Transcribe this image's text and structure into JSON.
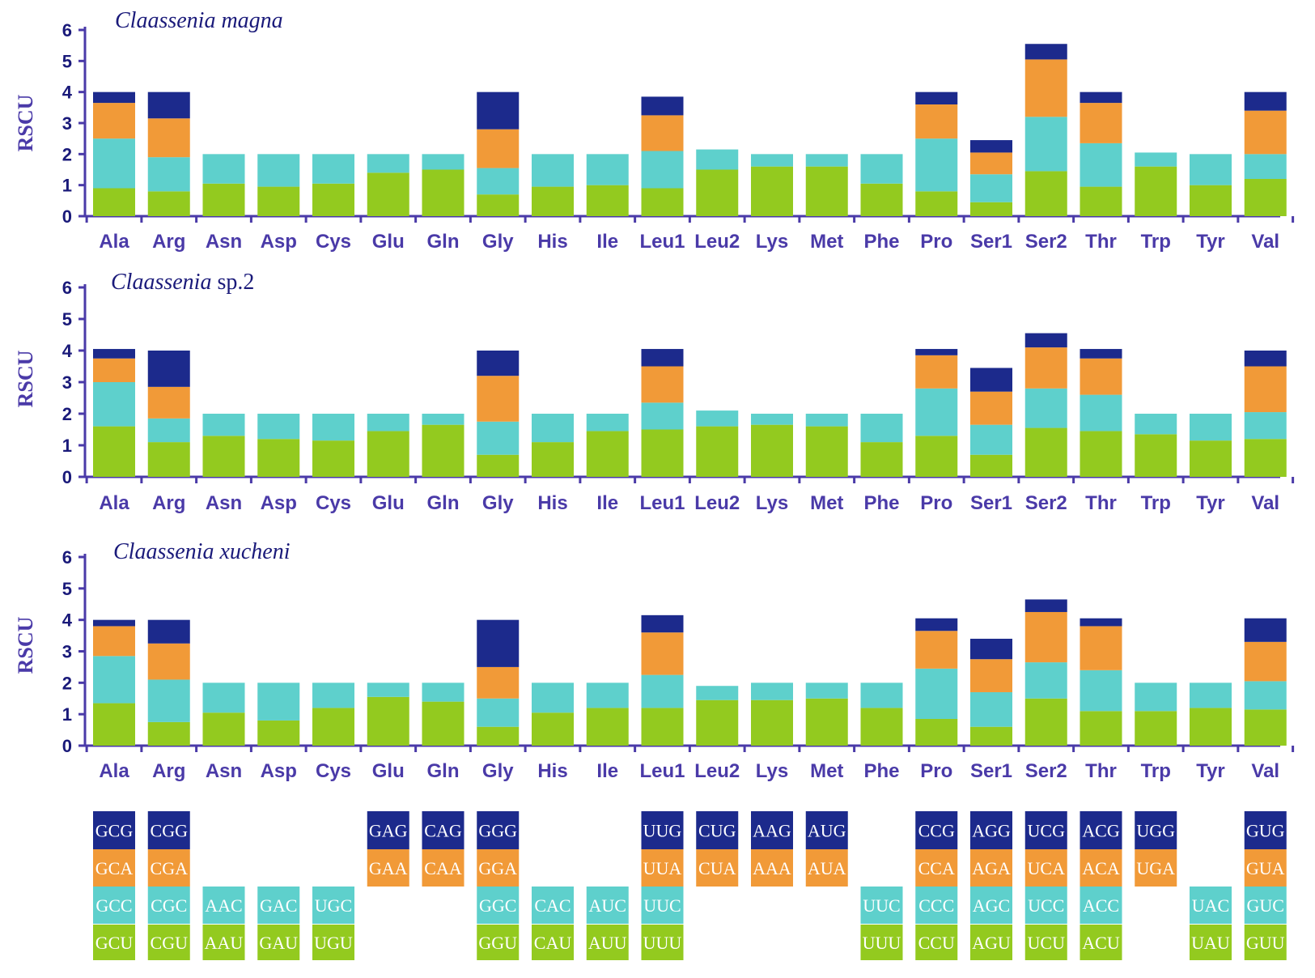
{
  "colors": {
    "level1": "#93ca1f",
    "level2": "#5ed0cc",
    "level3": "#f19a38",
    "level4": "#1c2a8c",
    "axis": "#4a3aa8"
  },
  "chart_data": [
    {
      "type": "bar",
      "stacked": true,
      "title": "Claassenia magna",
      "title_italic": "Claassenia magna",
      "title_plain": "",
      "ylabel": "RSCU",
      "ylim": [
        0,
        6
      ],
      "yticks": [
        "0",
        "1",
        "2",
        "3",
        "4",
        "5",
        "6"
      ],
      "categories": [
        "Ala",
        "Arg",
        "Asn",
        "Asp",
        "Cys",
        "Glu",
        "Gln",
        "Gly",
        "His",
        "Ile",
        "Leu1",
        "Leu2",
        "Lys",
        "Met",
        "Phe",
        "Pro",
        "Ser1",
        "Ser2",
        "Thr",
        "Trp",
        "Tyr",
        "Val"
      ],
      "stacks": [
        [
          0.9,
          1.6,
          1.15,
          0.35
        ],
        [
          0.8,
          1.1,
          1.25,
          0.85
        ],
        [
          1.05,
          0.95
        ],
        [
          0.95,
          1.05
        ],
        [
          1.05,
          0.95
        ],
        [
          1.4,
          0.6
        ],
        [
          1.5,
          0.5
        ],
        [
          0.7,
          0.85,
          1.25,
          1.2
        ],
        [
          0.95,
          1.05
        ],
        [
          1.0,
          1.0
        ],
        [
          0.9,
          1.2,
          1.15,
          0.6
        ],
        [
          1.5,
          0.65
        ],
        [
          1.6,
          0.4
        ],
        [
          1.6,
          0.4
        ],
        [
          1.05,
          0.95
        ],
        [
          0.8,
          1.7,
          1.1,
          0.4
        ],
        [
          0.45,
          0.9,
          0.7,
          0.4
        ],
        [
          1.45,
          1.75,
          1.85,
          0.5
        ],
        [
          0.95,
          1.4,
          1.3,
          0.35
        ],
        [
          1.6,
          0.45
        ],
        [
          1.0,
          1.0
        ],
        [
          1.2,
          0.8,
          1.4,
          0.6
        ]
      ]
    },
    {
      "type": "bar",
      "stacked": true,
      "title": "Claassenia sp.2",
      "title_italic": "Claassenia",
      "title_plain": " sp.2",
      "ylabel": "RSCU",
      "ylim": [
        0,
        6
      ],
      "yticks": [
        "0",
        "1",
        "2",
        "3",
        "4",
        "5",
        "6"
      ],
      "categories": [
        "Ala",
        "Arg",
        "Asn",
        "Asp",
        "Cys",
        "Glu",
        "Gln",
        "Gly",
        "His",
        "Ile",
        "Leu1",
        "Leu2",
        "Lys",
        "Met",
        "Phe",
        "Pro",
        "Ser1",
        "Ser2",
        "Thr",
        "Trp",
        "Tyr",
        "Val"
      ],
      "stacks": [
        [
          1.6,
          1.4,
          0.75,
          0.3
        ],
        [
          1.1,
          0.75,
          1.0,
          1.15
        ],
        [
          1.3,
          0.7
        ],
        [
          1.2,
          0.8
        ],
        [
          1.15,
          0.85
        ],
        [
          1.45,
          0.55
        ],
        [
          1.65,
          0.35
        ],
        [
          0.7,
          1.05,
          1.45,
          0.8
        ],
        [
          1.1,
          0.9
        ],
        [
          1.45,
          0.55
        ],
        [
          1.5,
          0.85,
          1.15,
          0.55
        ],
        [
          1.6,
          0.5
        ],
        [
          1.65,
          0.35
        ],
        [
          1.6,
          0.4
        ],
        [
          1.1,
          0.9
        ],
        [
          1.3,
          1.5,
          1.05,
          0.2
        ],
        [
          0.7,
          0.95,
          1.05,
          0.75
        ],
        [
          1.55,
          1.25,
          1.3,
          0.45
        ],
        [
          1.45,
          1.15,
          1.15,
          0.3
        ],
        [
          1.35,
          0.65
        ],
        [
          1.15,
          0.85
        ],
        [
          1.2,
          0.85,
          1.45,
          0.5
        ]
      ]
    },
    {
      "type": "bar",
      "stacked": true,
      "title": "Claassenia xucheni",
      "title_italic": "Claassenia xucheni",
      "title_plain": "",
      "ylabel": "RSCU",
      "ylim": [
        0,
        6
      ],
      "yticks": [
        "0",
        "1",
        "2",
        "3",
        "4",
        "5",
        "6"
      ],
      "categories": [
        "Ala",
        "Arg",
        "Asn",
        "Asp",
        "Cys",
        "Glu",
        "Gln",
        "Gly",
        "His",
        "Ile",
        "Leu1",
        "Leu2",
        "Lys",
        "Met",
        "Phe",
        "Pro",
        "Ser1",
        "Ser2",
        "Thr",
        "Trp",
        "Tyr",
        "Val"
      ],
      "stacks": [
        [
          1.35,
          1.5,
          0.95,
          0.2
        ],
        [
          0.75,
          1.35,
          1.15,
          0.75
        ],
        [
          1.05,
          0.95
        ],
        [
          0.8,
          1.2
        ],
        [
          1.2,
          0.8
        ],
        [
          1.55,
          0.45
        ],
        [
          1.4,
          0.6
        ],
        [
          0.6,
          0.9,
          1.0,
          1.5
        ],
        [
          1.05,
          0.95
        ],
        [
          1.2,
          0.8
        ],
        [
          1.2,
          1.05,
          1.35,
          0.55
        ],
        [
          1.45,
          0.45
        ],
        [
          1.45,
          0.55
        ],
        [
          1.5,
          0.5
        ],
        [
          1.2,
          0.8
        ],
        [
          0.85,
          1.6,
          1.2,
          0.4
        ],
        [
          0.6,
          1.1,
          1.05,
          0.65
        ],
        [
          1.5,
          1.15,
          1.6,
          0.4
        ],
        [
          1.1,
          1.3,
          1.4,
          0.25
        ],
        [
          1.1,
          0.9
        ],
        [
          1.2,
          0.8
        ],
        [
          1.15,
          0.9,
          1.25,
          0.75
        ]
      ]
    }
  ],
  "codon_table": [
    [
      "GCU",
      "GCC",
      "GCA",
      "GCG"
    ],
    [
      "CGU",
      "CGC",
      "CGA",
      "CGG"
    ],
    [
      "AAU",
      "AAC",
      "",
      ""
    ],
    [
      "GAU",
      "GAC",
      "",
      ""
    ],
    [
      "UGU",
      "UGC",
      "",
      ""
    ],
    [
      "",
      "",
      "GAA",
      "GAG"
    ],
    [
      "",
      "",
      "CAA",
      "CAG"
    ],
    [
      "GGU",
      "GGC",
      "GGA",
      "GGG"
    ],
    [
      "CAU",
      "CAC",
      "",
      ""
    ],
    [
      "AUU",
      "AUC",
      "",
      ""
    ],
    [
      "UUU",
      "UUC",
      "UUA",
      "UUG"
    ],
    [
      "",
      "",
      "CUA",
      "CUG"
    ],
    [
      "",
      "",
      "AAA",
      "AAG"
    ],
    [
      "",
      "",
      "AUA",
      "AUG"
    ],
    [
      "UUU",
      "UUC",
      "",
      ""
    ],
    [
      "CCU",
      "CCC",
      "CCA",
      "CCG"
    ],
    [
      "AGU",
      "AGC",
      "AGA",
      "AGG"
    ],
    [
      "UCU",
      "UCC",
      "UCA",
      "UCG"
    ],
    [
      "ACU",
      "ACC",
      "ACA",
      "ACG"
    ],
    [
      "",
      "",
      "UGA",
      "UGG"
    ],
    [
      "UAU",
      "UAC",
      "",
      ""
    ],
    [
      "GUU",
      "GUC",
      "GUA",
      "GUG"
    ]
  ]
}
